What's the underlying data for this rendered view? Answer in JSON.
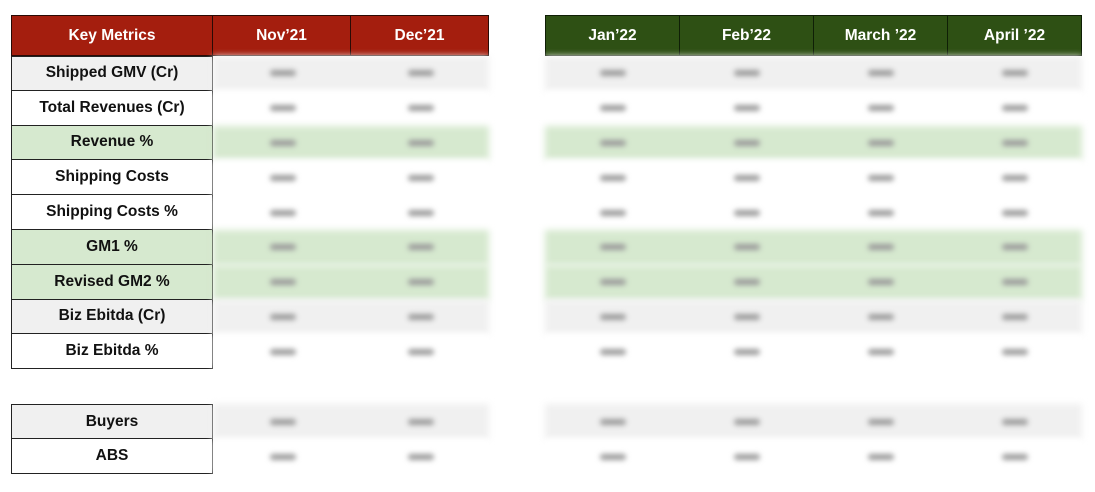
{
  "header": {
    "metrics_label": "Key  Metrics",
    "months_left": [
      "Nov’21",
      "Dec’21"
    ],
    "months_right": [
      "Jan’22",
      "Feb’22",
      "March ’22",
      "April ’22"
    ]
  },
  "rows": [
    {
      "label": "Shipped GMV (Cr)",
      "shade": "gray"
    },
    {
      "label": "Total Revenues (Cr)",
      "shade": "white"
    },
    {
      "label": "Revenue %",
      "shade": "green"
    },
    {
      "label": "Shipping Costs",
      "shade": "white"
    },
    {
      "label": "Shipping Costs %",
      "shade": "white"
    },
    {
      "label": "GM1 %",
      "shade": "green"
    },
    {
      "label": "Revised GM2 %",
      "shade": "green"
    },
    {
      "label": "Biz Ebitda (Cr)",
      "shade": "gray"
    },
    {
      "label": "Biz Ebitda %",
      "shade": "white"
    }
  ],
  "rows2": [
    {
      "label": "Buyers",
      "shade": "gray"
    },
    {
      "label": "ABS",
      "shade": "white"
    }
  ],
  "colors": {
    "header_red": "#a41e0e",
    "header_green": "#2e5014",
    "row_gray": "#f0f0f0",
    "row_green": "#d6e9cf"
  }
}
